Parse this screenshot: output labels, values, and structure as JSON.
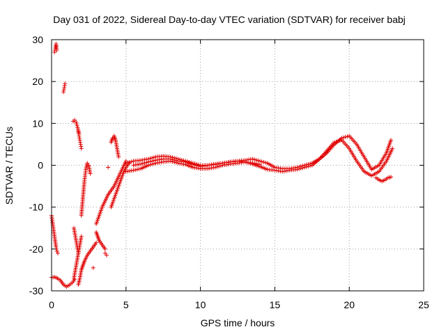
{
  "chart_data": {
    "type": "scatter",
    "title": "Day 031 of 2022, Sidereal Day-to-day VTEC variation (SDTVAR) for receiver babj",
    "xlabel": "GPS time / hours",
    "ylabel": "SDTVAR / TECUs",
    "xlim": [
      0,
      25
    ],
    "ylim": [
      -30,
      30
    ],
    "xticks": [
      0,
      5,
      10,
      15,
      20,
      25
    ],
    "yticks": [
      -30,
      -20,
      -10,
      0,
      10,
      20,
      30
    ],
    "xtick_labels": [
      "0",
      "5",
      "10",
      "15",
      "20",
      "25"
    ],
    "ytick_labels": [
      "-30",
      "-20",
      "-10",
      "0",
      "10",
      "20",
      "30"
    ],
    "grid": true,
    "marker": "+",
    "color": "#e00000",
    "series": [
      {
        "name": "seg_low_start",
        "x": [
          0.0,
          0.2,
          0.4,
          0.6,
          0.8,
          1.0,
          1.2,
          1.4,
          1.55
        ],
        "y": [
          -26.8,
          -26.7,
          -27.0,
          -27.5,
          -28.5,
          -29.0,
          -28.6,
          -28.0,
          -27.3
        ]
      },
      {
        "name": "seg_desc_start",
        "x": [
          0.0,
          0.08,
          0.16,
          0.24,
          0.3,
          0.36,
          0.42
        ],
        "y": [
          -12,
          -14,
          -16,
          -18,
          -19.5,
          -20.5,
          -21
        ]
      },
      {
        "name": "seg_top",
        "x": [
          0.2,
          0.25,
          0.3,
          0.35
        ],
        "y": [
          27,
          28,
          29,
          27.5
        ]
      },
      {
        "name": "seg_spike1",
        "x": [
          0.8,
          0.85,
          0.9
        ],
        "y": [
          17.5,
          18.5,
          19.5
        ]
      },
      {
        "name": "seg_b",
        "x": [
          1.45,
          1.55,
          1.65,
          1.75,
          1.85
        ],
        "y": [
          10.5,
          10.8,
          10.3,
          9.0,
          7.5
        ]
      },
      {
        "name": "seg_c",
        "x": [
          1.8,
          1.85,
          1.9,
          1.95,
          2.0
        ],
        "y": [
          8,
          7,
          6,
          5,
          4
        ]
      },
      {
        "name": "seg_d",
        "x": [
          1.5,
          1.6,
          1.7,
          1.8
        ],
        "y": [
          -15,
          -17,
          -19,
          -21
        ]
      },
      {
        "name": "seg_e",
        "x": [
          1.5,
          1.6,
          1.7,
          1.8,
          1.9,
          2.0
        ],
        "y": [
          -27,
          -25,
          -23,
          -21,
          -19,
          -17
        ]
      },
      {
        "name": "seg_f",
        "x": [
          2.0,
          2.1,
          2.2,
          2.3,
          2.4,
          2.5,
          2.6
        ],
        "y": [
          -12,
          -8,
          -4,
          -1,
          0.5,
          0,
          -2
        ]
      },
      {
        "name": "seg_g",
        "x": [
          1.8,
          1.9,
          2.0,
          2.1,
          2.2,
          2.4,
          2.6,
          2.8,
          3.0
        ],
        "y": [
          -28.5,
          -27,
          -25,
          -24,
          -23,
          -21.5,
          -20.5,
          -19.5,
          -18.5
        ]
      },
      {
        "name": "seg_h",
        "x": [
          3.0,
          3.1,
          3.2,
          3.4,
          3.6
        ],
        "y": [
          -16,
          -17,
          -18,
          -19,
          -20
        ]
      },
      {
        "name": "seg_i",
        "x": [
          3.6,
          3.7
        ],
        "y": [
          -21,
          -21.5
        ]
      },
      {
        "name": "seg_j",
        "x": [
          2.8
        ],
        "y": [
          -24.5
        ]
      },
      {
        "name": "seg_k",
        "x": [
          3.8
        ],
        "y": [
          -0.5
        ]
      },
      {
        "name": "seg_l",
        "x": [
          4.0,
          4.1,
          4.2,
          4.3,
          4.4,
          4.5
        ],
        "y": [
          5.5,
          6.5,
          7,
          6,
          4,
          2
        ]
      },
      {
        "name": "seg_rise",
        "x": [
          3.0,
          3.2,
          3.4,
          3.6,
          3.8,
          4.0,
          4.2,
          4.4,
          4.6,
          4.8,
          5.0
        ],
        "y": [
          -14,
          -12,
          -10,
          -8.5,
          -7,
          -6,
          -5,
          -3.5,
          -2,
          -0.5,
          1
        ]
      },
      {
        "name": "seg_rise2",
        "x": [
          4.0,
          4.2,
          4.4,
          4.6,
          4.8,
          5.0,
          5.2
        ],
        "y": [
          -10,
          -8,
          -6,
          -4,
          -2,
          -0.5,
          0.5
        ]
      },
      {
        "name": "seg_main_a",
        "x": [
          5,
          5.5,
          6,
          6.5,
          7,
          7.5,
          8,
          8.5,
          9,
          9.5,
          10,
          10.5,
          11,
          11.5,
          12,
          12.5,
          13,
          13.5,
          14,
          14.5,
          15,
          15.5,
          16,
          16.5,
          17,
          17.5,
          18,
          18.5,
          19,
          19.5,
          20,
          20.5,
          21,
          21.5,
          22,
          22.5,
          22.8
        ],
        "y": [
          0.5,
          1.0,
          1.2,
          1.5,
          2.0,
          2.2,
          2.0,
          1.5,
          1.0,
          0.5,
          0,
          0,
          0.2,
          0.5,
          0.8,
          1.0,
          1.2,
          1.5,
          1.0,
          0.5,
          -0.5,
          -0.8,
          -0.8,
          -0.5,
          0,
          0.5,
          1.5,
          3,
          5,
          6.5,
          7,
          5,
          2,
          -1,
          0,
          3,
          6
        ]
      },
      {
        "name": "seg_main_b",
        "x": [
          5,
          5.5,
          6,
          6.5,
          7,
          7.5,
          8,
          8.5,
          9,
          9.5,
          10,
          10.5,
          11,
          11.5,
          12,
          12.5,
          13,
          13.5,
          14,
          14.5,
          15,
          15.5,
          16,
          16.5,
          17,
          17.5,
          18,
          18.5,
          19,
          19.5,
          20,
          20.5,
          21,
          21.5,
          22,
          22.5,
          22.9
        ],
        "y": [
          -1.5,
          -1.2,
          -0.8,
          0,
          0.5,
          0.8,
          1.0,
          0.5,
          0.2,
          -0.5,
          -0.8,
          -0.8,
          -0.5,
          0,
          0.3,
          0.5,
          0.8,
          0.3,
          -0.3,
          -1,
          -1.2,
          -1.5,
          -1.2,
          -1.0,
          -0.5,
          0,
          1.5,
          3.5,
          5.5,
          6,
          4,
          1,
          -1.5,
          -2.5,
          -1.5,
          1,
          4
        ]
      },
      {
        "name": "seg_main_c",
        "x": [
          5.5,
          6,
          6.5,
          7,
          7.5,
          8,
          8.5,
          9,
          9.5,
          10,
          10.5,
          11,
          11.5,
          12,
          12.5,
          13,
          13.5,
          14
        ],
        "y": [
          0,
          0.3,
          0.8,
          1.2,
          1.5,
          1.5,
          1.0,
          0.8,
          0.2,
          -0.3,
          0,
          0.3,
          0.5,
          0.8,
          1.0,
          0.8,
          0.5,
          0.2
        ]
      },
      {
        "name": "seg_tail",
        "x": [
          21.8,
          22.0,
          22.2,
          22.4,
          22.6,
          22.8
        ],
        "y": [
          -3,
          -3.5,
          -3.8,
          -3.5,
          -3,
          -2.8
        ]
      }
    ]
  }
}
